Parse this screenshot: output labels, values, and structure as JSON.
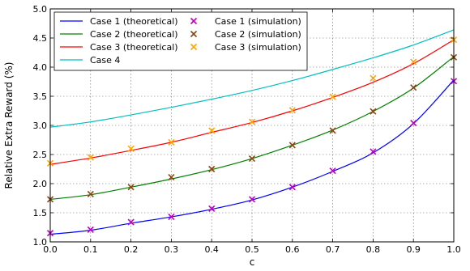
{
  "chart_data": {
    "type": "line",
    "xlabel": "c",
    "ylabel": "Relative Extra Reward (%)",
    "xlim": [
      0.0,
      1.0
    ],
    "ylim": [
      1.0,
      5.0
    ],
    "xticks": [
      0.0,
      0.1,
      0.2,
      0.3,
      0.4,
      0.5,
      0.6,
      0.7,
      0.8,
      0.9,
      1.0
    ],
    "yticks": [
      1.0,
      1.5,
      2.0,
      2.5,
      3.0,
      3.5,
      4.0,
      4.5,
      5.0
    ],
    "xtick_labels": [
      "0.0",
      "0.1",
      "0.2",
      "0.3",
      "0.4",
      "0.5",
      "0.6",
      "0.7",
      "0.8",
      "0.9",
      "1.0"
    ],
    "ytick_labels": [
      "1.0",
      "1.5",
      "2.0",
      "2.5",
      "3.0",
      "3.5",
      "4.0",
      "4.5",
      "5.0"
    ],
    "grid": true,
    "legend_position": "top-left",
    "lines": [
      {
        "name": "Case 1 (theoretical)",
        "color": "#0000ff",
        "x": [
          0.0,
          0.1,
          0.2,
          0.3,
          0.4,
          0.5,
          0.6,
          0.7,
          0.8,
          0.9,
          1.0
        ],
        "y": [
          1.13,
          1.2,
          1.32,
          1.43,
          1.56,
          1.72,
          1.94,
          2.21,
          2.53,
          3.03,
          3.78
        ]
      },
      {
        "name": "Case 2 (theoretical)",
        "color": "#008000",
        "x": [
          0.0,
          0.1,
          0.2,
          0.3,
          0.4,
          0.5,
          0.6,
          0.7,
          0.8,
          0.9,
          1.0
        ],
        "y": [
          1.73,
          1.81,
          1.94,
          2.08,
          2.24,
          2.43,
          2.66,
          2.92,
          3.24,
          3.64,
          4.18
        ]
      },
      {
        "name": "Case 3 (theoretical)",
        "color": "#ff0000",
        "x": [
          0.0,
          0.1,
          0.2,
          0.3,
          0.4,
          0.5,
          0.6,
          0.7,
          0.8,
          0.9,
          1.0
        ],
        "y": [
          2.33,
          2.44,
          2.57,
          2.71,
          2.88,
          3.05,
          3.25,
          3.48,
          3.74,
          4.06,
          4.47
        ]
      },
      {
        "name": "Case 4",
        "color": "#00bfbf",
        "x": [
          0.0,
          0.1,
          0.2,
          0.3,
          0.4,
          0.5,
          0.6,
          0.7,
          0.8,
          0.9,
          1.0
        ],
        "y": [
          2.97,
          3.06,
          3.18,
          3.31,
          3.45,
          3.6,
          3.77,
          3.96,
          4.16,
          4.38,
          4.64
        ]
      }
    ],
    "markers": [
      {
        "name": "Case 1 (simulation)",
        "color": "#bf00bf",
        "x": [
          0.0,
          0.1,
          0.2,
          0.3,
          0.4,
          0.5,
          0.6,
          0.7,
          0.8,
          0.9,
          1.0
        ],
        "y": [
          1.15,
          1.21,
          1.34,
          1.43,
          1.57,
          1.73,
          1.94,
          2.22,
          2.55,
          3.04,
          3.76
        ]
      },
      {
        "name": "Case 2 (simulation)",
        "color": "#8b4513",
        "x": [
          0.0,
          0.1,
          0.2,
          0.3,
          0.4,
          0.5,
          0.6,
          0.7,
          0.8,
          0.9,
          1.0
        ],
        "y": [
          1.73,
          1.82,
          1.94,
          2.11,
          2.25,
          2.43,
          2.66,
          2.91,
          3.24,
          3.65,
          4.17
        ]
      },
      {
        "name": "Case 3 (simulation)",
        "color": "#ffa500",
        "x": [
          0.0,
          0.1,
          0.2,
          0.3,
          0.4,
          0.5,
          0.6,
          0.7,
          0.8,
          0.9,
          1.0
        ],
        "y": [
          2.35,
          2.45,
          2.6,
          2.71,
          2.91,
          3.06,
          3.26,
          3.49,
          3.81,
          4.09,
          4.47
        ]
      }
    ]
  }
}
